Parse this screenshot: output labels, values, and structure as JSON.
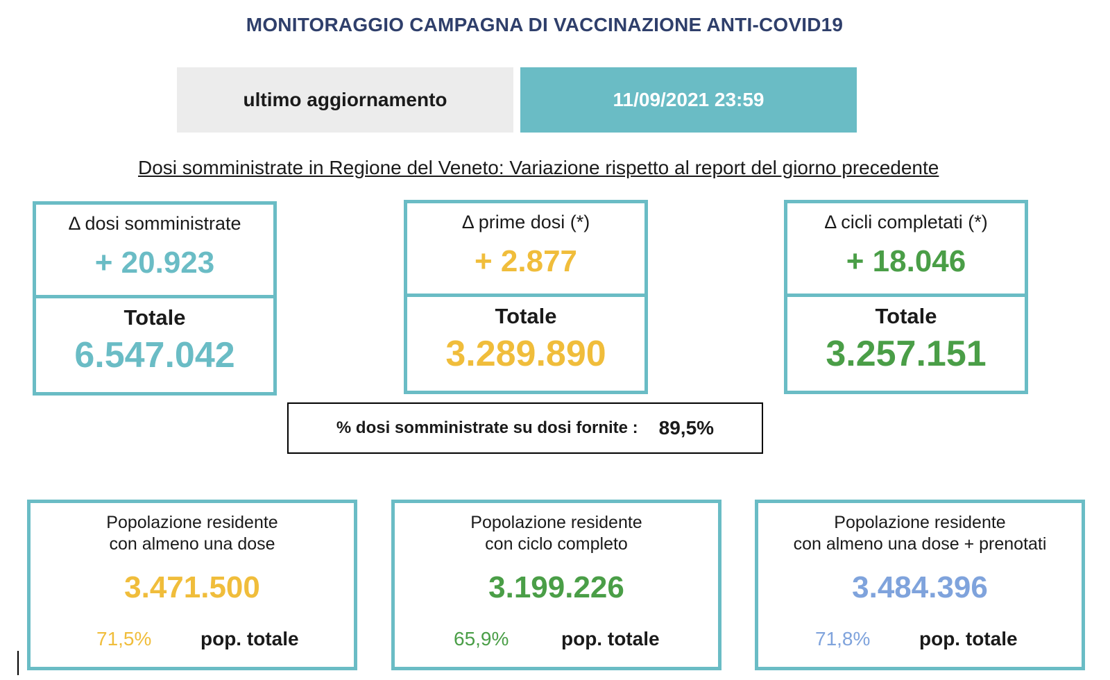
{
  "header": {
    "title": "MONITORAGGIO CAMPAGNA DI VACCINAZIONE ANTI-COVID19",
    "update_label": "ultimo aggiornamento",
    "update_value": "11/09/2021 23:59"
  },
  "subtitle": "Dosi somministrate in Regione del Veneto: Variazione rispetto al report del giorno precedente",
  "kpis": [
    {
      "label": "Δ dosi somministrate",
      "delta": "+ 20.923",
      "total_label": "Totale",
      "total": "6.547.042",
      "color": "#6abcc5"
    },
    {
      "label": "Δ prime dosi (*)",
      "delta": "+ 2.877",
      "total_label": "Totale",
      "total": "3.289.890",
      "color": "#f0bd3b"
    },
    {
      "label": "Δ cicli completati (*)",
      "delta": "+ 18.046",
      "total_label": "Totale",
      "total": "3.257.151",
      "color": "#4a9e47"
    }
  ],
  "ratio": {
    "label": "% dosi somministrate su dosi fornite :",
    "value": "89,5%"
  },
  "population": [
    {
      "line1": "Popolazione residente",
      "line2": "con almeno una dose",
      "value": "3.471.500",
      "pct": "71,5%",
      "unit": "pop. totale",
      "color": "#f0bd3b"
    },
    {
      "line1": "Popolazione residente",
      "line2": "con ciclo completo",
      "value": "3.199.226",
      "pct": "65,9%",
      "unit": "pop. totale",
      "color": "#4a9e47"
    },
    {
      "line1": "Popolazione residente",
      "line2": "con almeno una dose + prenotati",
      "value": "3.484.396",
      "pct": "71,8%",
      "unit": "pop. totale",
      "color": "#7fa3dc"
    }
  ]
}
